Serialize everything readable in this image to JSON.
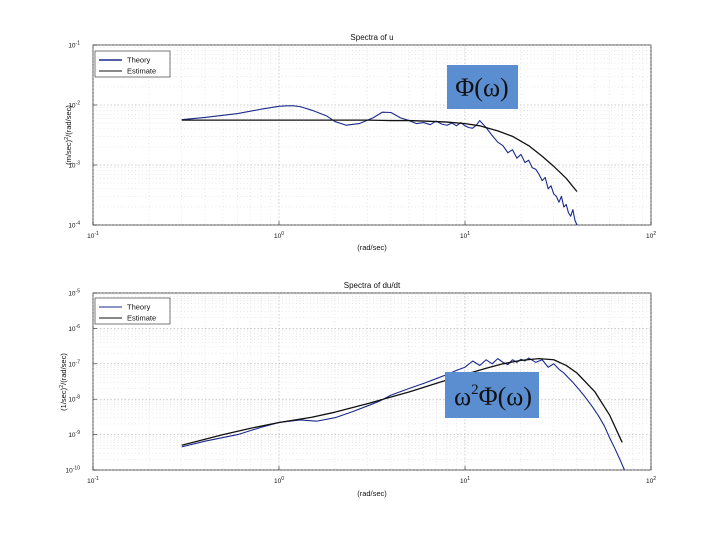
{
  "chart_data": [
    {
      "type": "line",
      "title": "Spectra of u",
      "xlabel": "(rad/sec)",
      "ylabel_main": "(m/sec)",
      "ylabel_sup": "2",
      "ylabel_rest": "/(rad/sec)",
      "xscale": "log",
      "yscale": "log",
      "xlim": [
        0.1,
        100
      ],
      "ylim": [
        0.0001,
        0.1
      ],
      "xticks": [
        {
          "value": 0.1,
          "base": "10",
          "exp": "-1"
        },
        {
          "value": 1,
          "base": "10",
          "exp": "0"
        },
        {
          "value": 10,
          "base": "10",
          "exp": "1"
        },
        {
          "value": 100,
          "base": "10",
          "exp": "2"
        }
      ],
      "yticks": [
        {
          "value": 0.1,
          "base": "10",
          "exp": "-1"
        },
        {
          "value": 0.01,
          "base": "10",
          "exp": "-2"
        },
        {
          "value": 0.001,
          "base": "10",
          "exp": "-3"
        },
        {
          "value": 0.0001,
          "base": "10",
          "exp": "-4"
        }
      ],
      "grid": true,
      "legend_position": "top-left",
      "annotation": {
        "text": "Φ(ω)",
        "sup": ""
      },
      "series": [
        {
          "name": "Theory",
          "role": "theory",
          "color": "#1a2a8c",
          "x": [
            0.3,
            0.4,
            0.6,
            0.8,
            1.0,
            1.1,
            1.2,
            1.3,
            1.5,
            1.8,
            2.0,
            2.3,
            2.7,
            3.2,
            3.6,
            4.0,
            4.5,
            5.0,
            5.5,
            6.0,
            6.5,
            7.0,
            7.5,
            8.0,
            8.5,
            9.0,
            9.5,
            10.0,
            10.5,
            11.0,
            11.5,
            12.0,
            13.0,
            14.0,
            15.0,
            16.0,
            17.0,
            18.0,
            19.0,
            20.0,
            21.0,
            22.0,
            23.0,
            24.0,
            25.0,
            26.0,
            27.0,
            28.0,
            29.0,
            30.0,
            31.0,
            32.0,
            33.0,
            34.0,
            35.0,
            36.0,
            37.0,
            38.0,
            39.0,
            40.0
          ],
          "y": [
            0.0057,
            0.0062,
            0.0072,
            0.0085,
            0.0095,
            0.0097,
            0.0097,
            0.0094,
            0.0082,
            0.0066,
            0.0053,
            0.0046,
            0.0049,
            0.0061,
            0.0076,
            0.0075,
            0.0061,
            0.0055,
            0.0049,
            0.0051,
            0.0047,
            0.0054,
            0.0048,
            0.0046,
            0.005,
            0.0045,
            0.0051,
            0.0045,
            0.0042,
            0.0041,
            0.0046,
            0.0055,
            0.0042,
            0.0031,
            0.0024,
            0.0021,
            0.0016,
            0.0018,
            0.0013,
            0.0015,
            0.0011,
            0.0012,
            0.0009,
            0.00085,
            0.0007,
            0.00055,
            0.00062,
            0.0004,
            0.00045,
            0.00033,
            0.0003,
            0.00024,
            0.0003,
            0.0002,
            0.00022,
            0.00016,
            0.00014,
            0.00018,
            0.00012,
            0.0001
          ]
        },
        {
          "name": "Estimate",
          "role": "estimate",
          "color": "#111111",
          "x": [
            0.3,
            0.5,
            1.0,
            2.0,
            3.0,
            4.0,
            5.0,
            6.0,
            7.0,
            8.0,
            10.0,
            12.0,
            15.0,
            18.0,
            22.0,
            26.0,
            30.0,
            35.0,
            40.0
          ],
          "y": [
            0.0056,
            0.0056,
            0.0056,
            0.0056,
            0.0056,
            0.0055,
            0.0055,
            0.0054,
            0.0053,
            0.0052,
            0.0049,
            0.0045,
            0.0037,
            0.003,
            0.0021,
            0.0014,
            0.00095,
            0.0006,
            0.00036
          ]
        }
      ]
    },
    {
      "type": "line",
      "title": "Spectra of du/dt",
      "xlabel": "(rad/sec)",
      "ylabel_main": "(1/sec)",
      "ylabel_sup": "2",
      "ylabel_rest": "/(rad/sec)",
      "xscale": "log",
      "yscale": "log",
      "xlim": [
        0.1,
        100
      ],
      "ylim": [
        1e-10,
        1e-05
      ],
      "xticks": [
        {
          "value": 0.1,
          "base": "10",
          "exp": "-1"
        },
        {
          "value": 1,
          "base": "10",
          "exp": "0"
        },
        {
          "value": 10,
          "base": "10",
          "exp": "1"
        },
        {
          "value": 100,
          "base": "10",
          "exp": "2"
        }
      ],
      "yticks": [
        {
          "value": 1e-05,
          "base": "10",
          "exp": "-5"
        },
        {
          "value": 1e-06,
          "base": "10",
          "exp": "-6"
        },
        {
          "value": 1e-07,
          "base": "10",
          "exp": "-7"
        },
        {
          "value": 1e-08,
          "base": "10",
          "exp": "-8"
        },
        {
          "value": 1e-09,
          "base": "10",
          "exp": "-9"
        },
        {
          "value": 1e-10,
          "base": "10",
          "exp": "-10"
        }
      ],
      "grid": true,
      "legend_position": "top-left",
      "annotation": {
        "text": "ω",
        "sup": "2",
        "text2": "Φ(ω)"
      },
      "series": [
        {
          "name": "Theory",
          "role": "theory",
          "color": "#1a2a8c",
          "x": [
            0.3,
            0.4,
            0.6,
            0.8,
            1.0,
            1.3,
            1.6,
            2.0,
            2.5,
            3.0,
            3.5,
            4.0,
            5.0,
            6.0,
            7.0,
            8.0,
            9.0,
            10.0,
            11.0,
            12.0,
            13.0,
            14.0,
            15.0,
            16.0,
            17.0,
            18.0,
            19.0,
            20.0,
            21.0,
            22.0,
            24.0,
            26.0,
            28.0,
            30.0,
            32.0,
            34.0,
            36.0,
            38.0,
            40.0,
            44.0,
            48.0,
            52.0,
            56.0,
            60.0,
            64.0,
            68.0,
            72.0
          ],
          "y": [
            4.5e-10,
            6.5e-10,
            1e-09,
            1.6e-09,
            2.2e-09,
            2.6e-09,
            2.4e-09,
            3e-09,
            4.5e-09,
            6.5e-09,
            9e-09,
            1.3e-08,
            2e-08,
            2.8e-08,
            3.8e-08,
            5e-08,
            6.5e-08,
            8e-08,
            1.2e-07,
            9e-08,
            1.3e-07,
            1e-07,
            1.4e-07,
            1.1e-07,
            9.5e-08,
            1.3e-07,
            1.1e-07,
            1.35e-07,
            1.2e-07,
            1.45e-07,
            1.1e-07,
            1.3e-07,
            8e-08,
            1e-07,
            7e-08,
            5.5e-08,
            4e-08,
            3e-08,
            2.2e-08,
            1.2e-08,
            6.5e-09,
            3.5e-09,
            1.8e-09,
            8e-10,
            4e-10,
            2e-10,
            1e-10
          ]
        },
        {
          "name": "Estimate",
          "role": "estimate",
          "color": "#111111",
          "x": [
            0.3,
            0.5,
            0.7,
            1.0,
            1.5,
            2.0,
            3.0,
            4.0,
            5.0,
            7.0,
            10.0,
            13.0,
            16.0,
            20.0,
            25.0,
            30.0,
            35.0,
            40.0,
            50.0,
            60.0,
            70.0
          ],
          "y": [
            5e-10,
            1e-09,
            1.5e-09,
            2.2e-09,
            3.1e-09,
            4.3e-09,
            7.5e-09,
            1.15e-08,
            1.6e-08,
            2.8e-08,
            5e-08,
            7.5e-08,
            1e-07,
            1.25e-07,
            1.4e-07,
            1.3e-07,
            9e-08,
            5.5e-08,
            1.6e-08,
            3.5e-09,
            6e-10
          ]
        }
      ]
    }
  ]
}
